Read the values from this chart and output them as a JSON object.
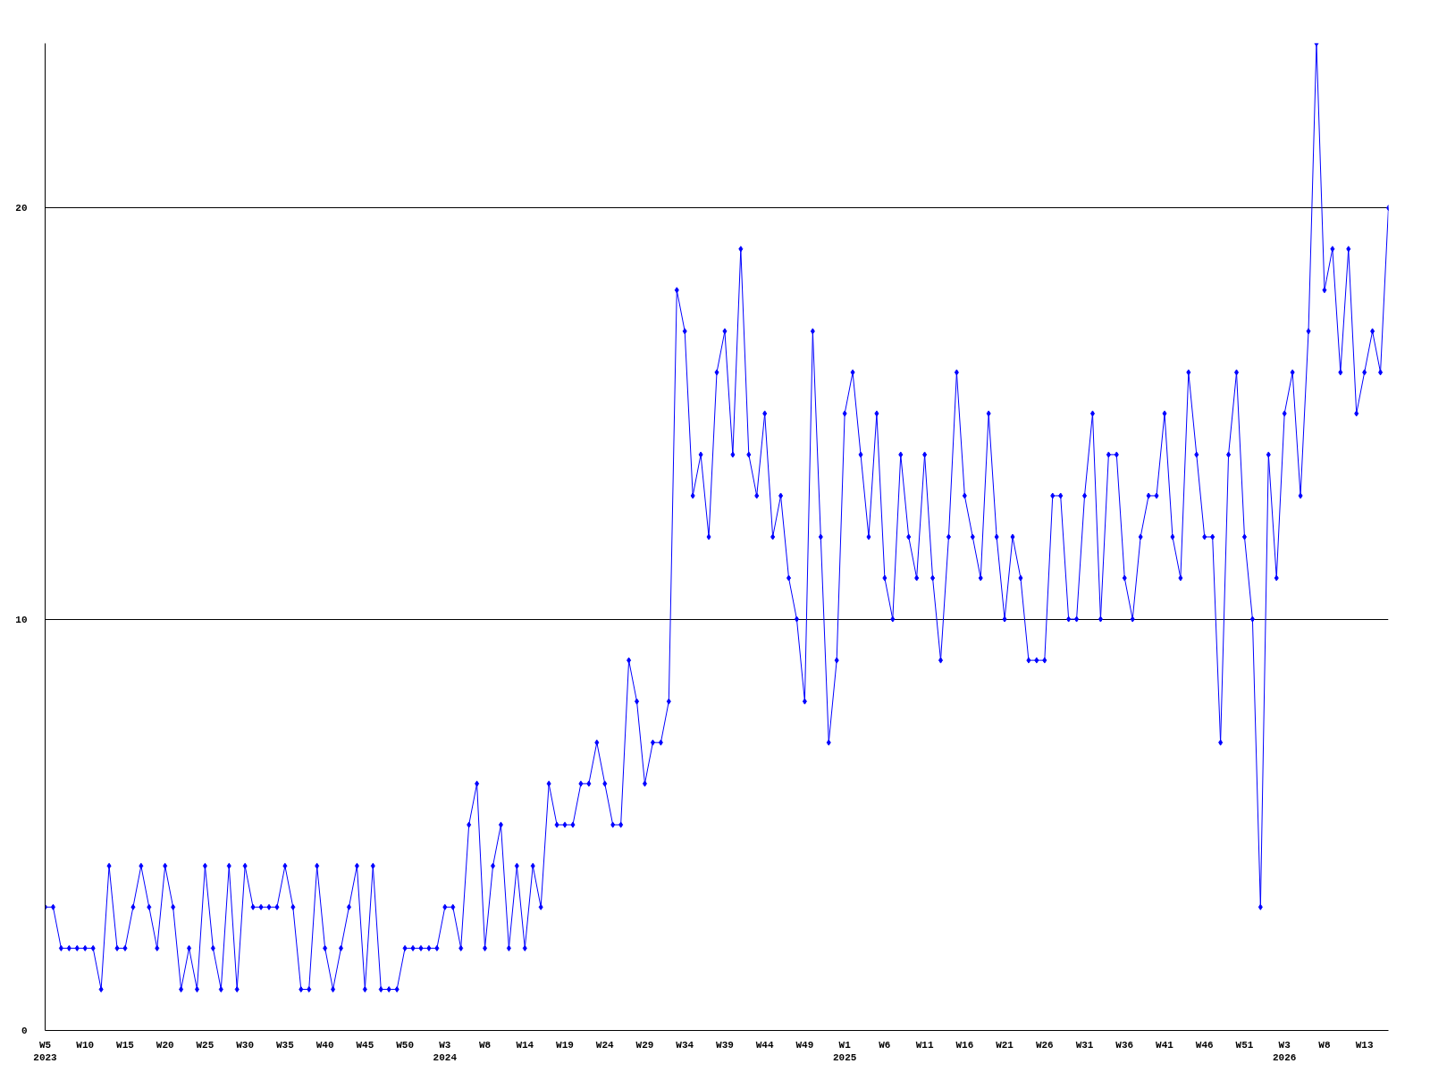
{
  "chart_data": {
    "type": "line",
    "categories": [
      "W5\n2023",
      null,
      null,
      null,
      null,
      "W10",
      null,
      null,
      null,
      null,
      "W15",
      null,
      null,
      null,
      null,
      "W20",
      null,
      null,
      null,
      null,
      "W25",
      null,
      null,
      null,
      null,
      "W30",
      null,
      null,
      null,
      null,
      "W35",
      null,
      null,
      null,
      null,
      "W40",
      null,
      null,
      null,
      null,
      "W45",
      null,
      null,
      null,
      null,
      "W50",
      null,
      null,
      null,
      null,
      "W3\n2024",
      null,
      null,
      null,
      null,
      "W8",
      null,
      null,
      null,
      null,
      "W14",
      null,
      null,
      null,
      null,
      "W19",
      null,
      null,
      null,
      null,
      "W24",
      null,
      null,
      null,
      null,
      "W29",
      null,
      null,
      null,
      null,
      "W34",
      null,
      null,
      null,
      null,
      "W39",
      null,
      null,
      null,
      null,
      "W44",
      null,
      null,
      null,
      null,
      "W49",
      null,
      null,
      null,
      null,
      "W1\n2025",
      null,
      null,
      null,
      null,
      "W6",
      null,
      null,
      null,
      null,
      "W11",
      null,
      null,
      null,
      null,
      "W16",
      null,
      null,
      null,
      null,
      "W21",
      null,
      null,
      null,
      null,
      "W26",
      null,
      null,
      null,
      null,
      "W31",
      null,
      null,
      null,
      null,
      "W36",
      null,
      null,
      null,
      null,
      "W41",
      null,
      null,
      null,
      null,
      "W46",
      null,
      null,
      null,
      null,
      "W51",
      null,
      null,
      null,
      null,
      "W3\n2026",
      null,
      null,
      null,
      null,
      "W8",
      null,
      null,
      null,
      null,
      "W13",
      null,
      null,
      null
    ],
    "series": [
      {
        "color": "#0000ff",
        "values": [
          3,
          3,
          2,
          2,
          2,
          2,
          2,
          1,
          4,
          2,
          2,
          3,
          4,
          3,
          2,
          4,
          3,
          1,
          2,
          1,
          4,
          2,
          1,
          4,
          1,
          4,
          3,
          3,
          3,
          3,
          4,
          3,
          1,
          1,
          4,
          2,
          1,
          2,
          3,
          4,
          1,
          4,
          1,
          1,
          1,
          2,
          2,
          2,
          2,
          2,
          3,
          3,
          2,
          5,
          6,
          2,
          4,
          5,
          2,
          4,
          2,
          4,
          3,
          6,
          5,
          5,
          5,
          6,
          6,
          7,
          6,
          5,
          5,
          9,
          8,
          6,
          7,
          7,
          8,
          18,
          17,
          13,
          14,
          12,
          16,
          17,
          14,
          19,
          14,
          13,
          15,
          12,
          13,
          11,
          10,
          8,
          17,
          12,
          7,
          9,
          15,
          16,
          14,
          12,
          15,
          11,
          10,
          14,
          12,
          11,
          14,
          11,
          9,
          12,
          16,
          13,
          12,
          11,
          15,
          12,
          10,
          12,
          11,
          9,
          9,
          9,
          13,
          13,
          10,
          10,
          13,
          15,
          10,
          14,
          14,
          11,
          10,
          12,
          13,
          13,
          15,
          12,
          11,
          16,
          14,
          12,
          12,
          7,
          14,
          16,
          12,
          10,
          3,
          14,
          11,
          15,
          16,
          13,
          17,
          24,
          18,
          19,
          16,
          19,
          15,
          16,
          17,
          16,
          20
        ]
      }
    ],
    "ylim": [
      0,
      24
    ],
    "yticks": [
      0,
      10,
      20
    ],
    "grid": "y",
    "marker": "diamond",
    "line_style": "solid"
  }
}
